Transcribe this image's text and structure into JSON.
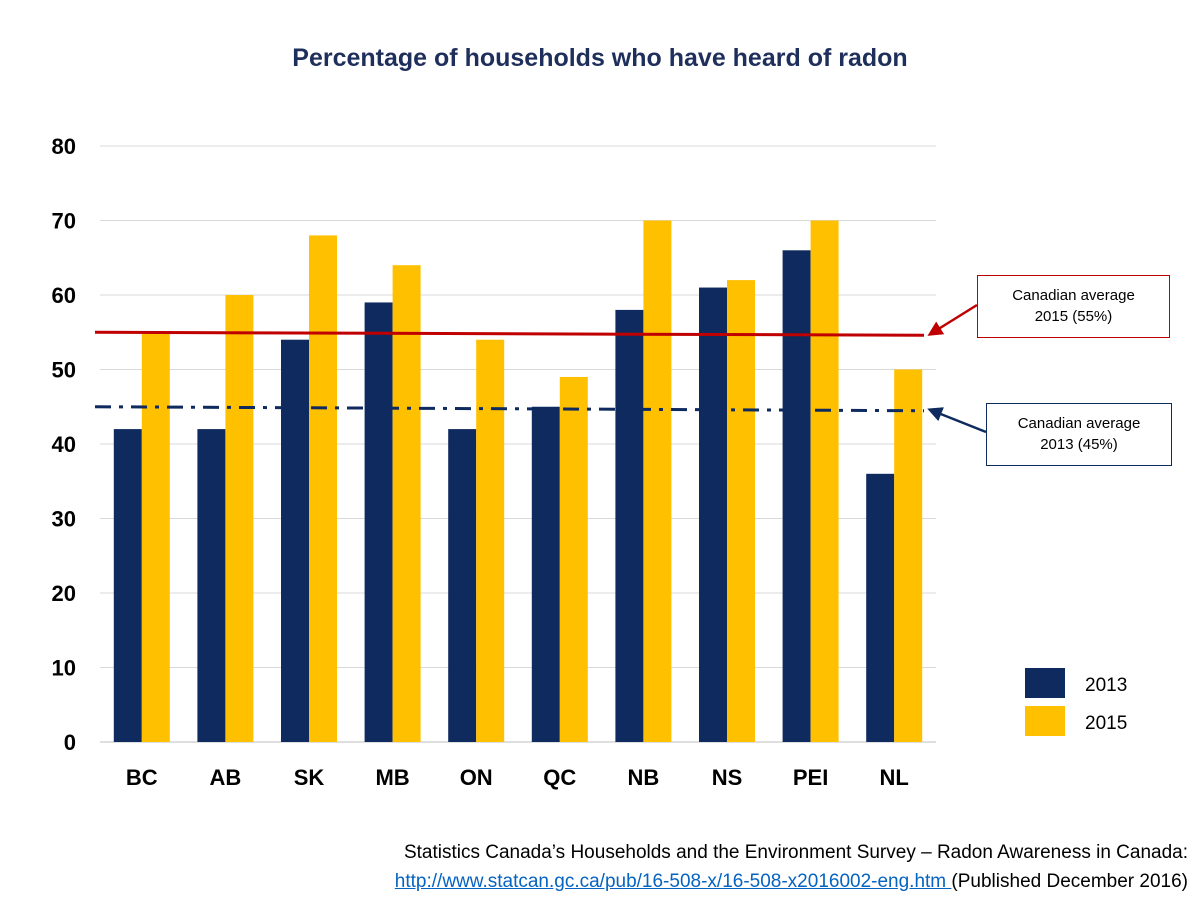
{
  "chart_data": {
    "type": "bar",
    "title": "Percentage of households who have heard of radon",
    "categories": [
      "BC",
      "AB",
      "SK",
      "MB",
      "ON",
      "QC",
      "NB",
      "NS",
      "PEI",
      "NL"
    ],
    "series": [
      {
        "name": "2013",
        "color": "#0e2a5e",
        "values": [
          42,
          42,
          54,
          59,
          42,
          45,
          58,
          61,
          66,
          36
        ]
      },
      {
        "name": "2015",
        "color": "#ffc000",
        "values": [
          55,
          60,
          68,
          64,
          54,
          49,
          70,
          62,
          70,
          50
        ]
      }
    ],
    "ylim": [
      0,
      80
    ],
    "yticks": [
      0,
      10,
      20,
      30,
      40,
      50,
      60,
      70,
      80
    ],
    "xlabel": "",
    "ylabel": "",
    "grid": true,
    "legend_position": "bottom-right",
    "reference_lines": [
      {
        "name": "2015",
        "value": 55,
        "color": "#c00000",
        "style": "solid",
        "label_line1": "Canadian average",
        "label_line2": "2015 (55%)"
      },
      {
        "name": "2013",
        "value": 45,
        "color": "#0e2a5e",
        "style": "dash-dot",
        "label_line1": "Canadian average",
        "label_line2": "2013 (45%)"
      }
    ]
  },
  "source": {
    "line1": "Statistics Canada’s Households and the Environment Survey – Radon Awareness in Canada:",
    "link": "http://www.statcan.gc.ca/pub/16-508-x/16-508-x2016002-eng.htm ",
    "suffix": "(Published December 2016)"
  }
}
